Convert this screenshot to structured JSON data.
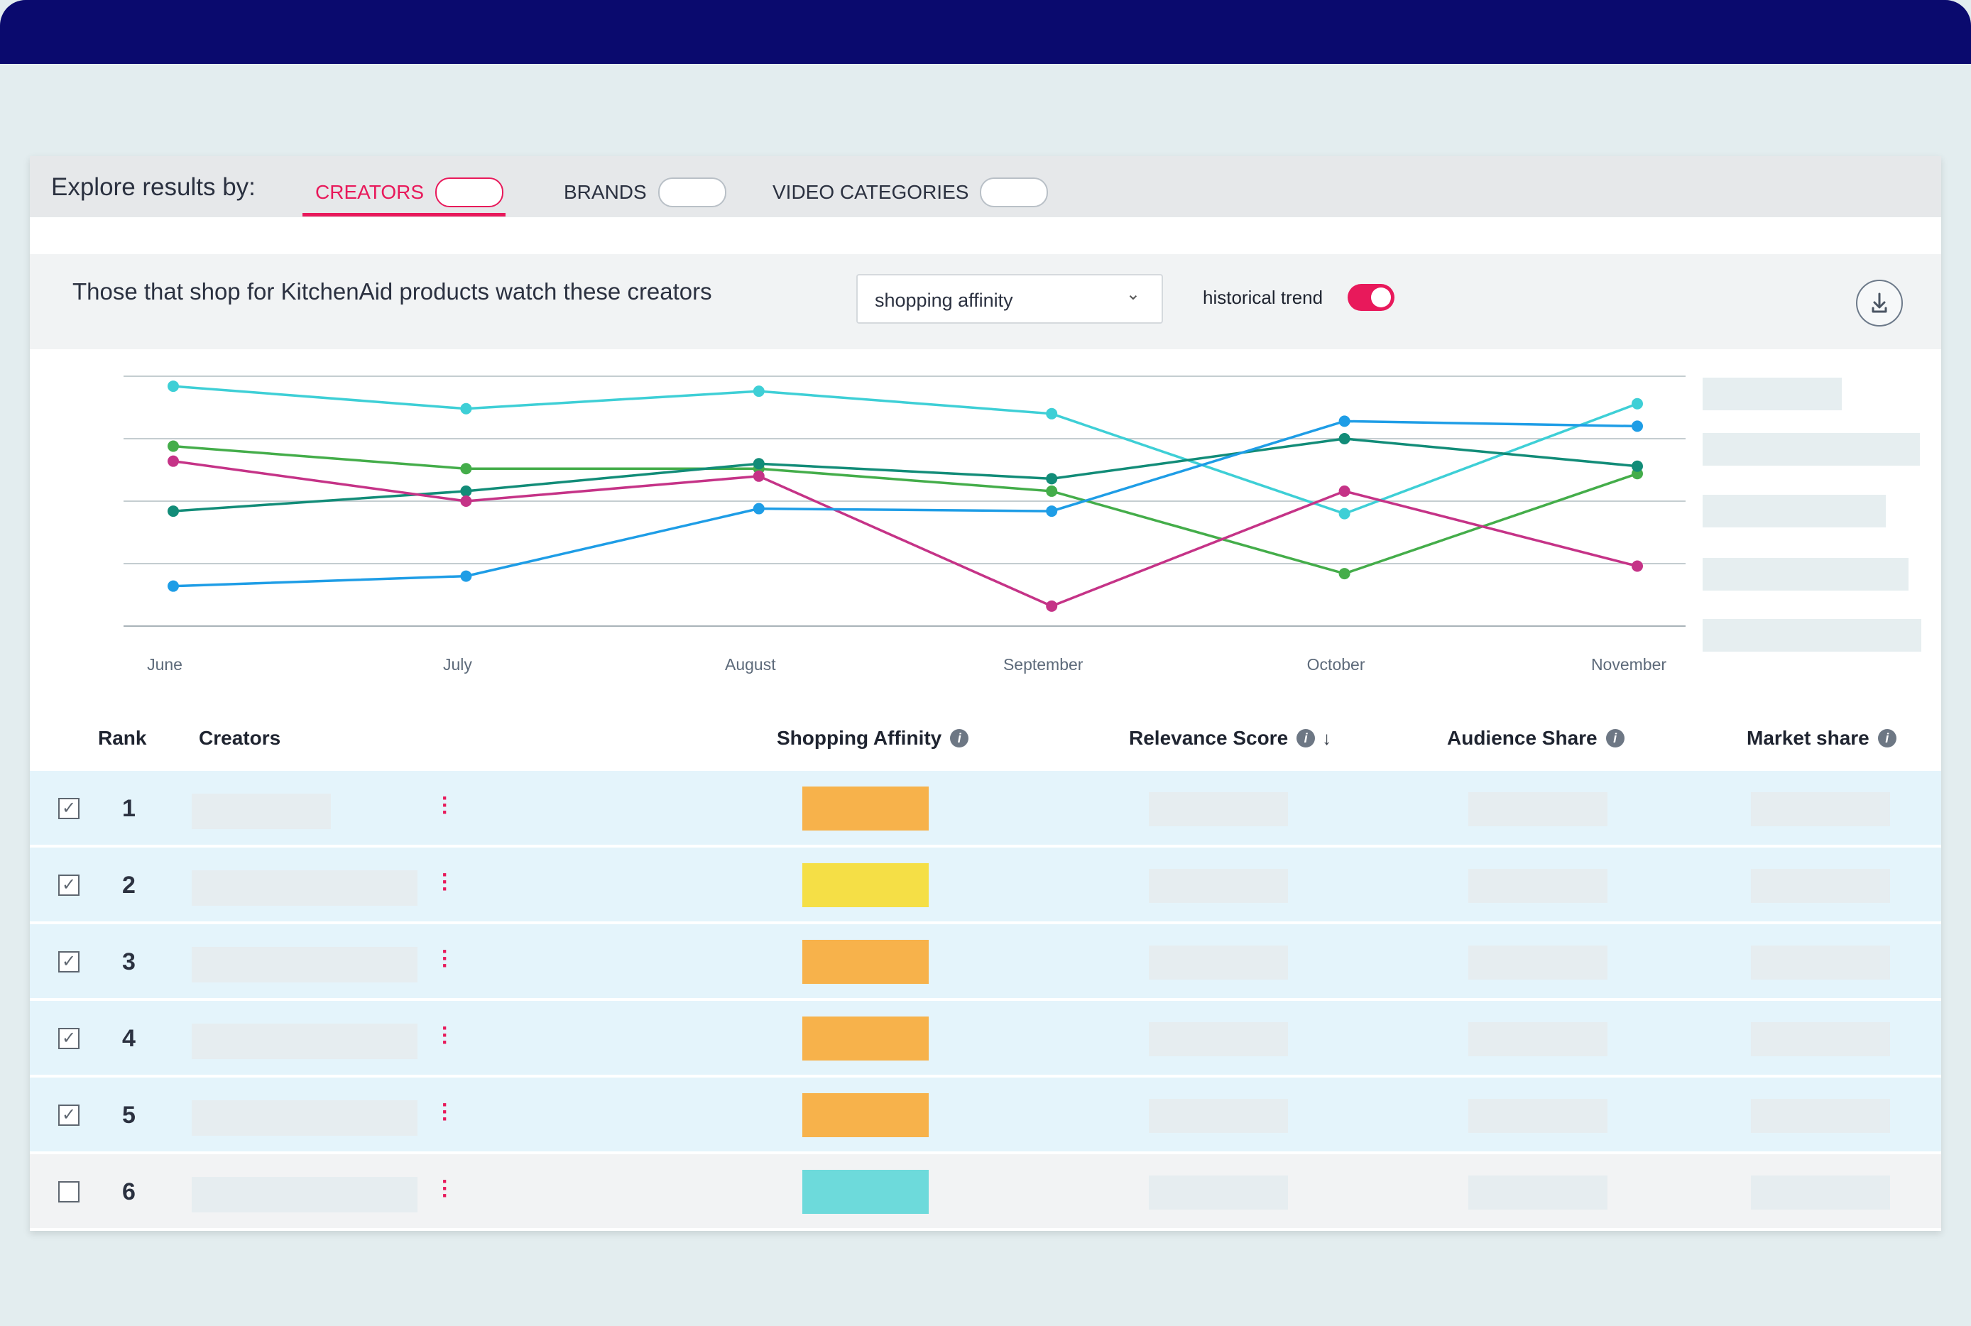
{
  "explore": {
    "label": "Explore results by:",
    "tabs": [
      {
        "label": "CREATORS",
        "active": true
      },
      {
        "label": "BRANDS",
        "active": false
      },
      {
        "label": "VIDEO CATEGORIES",
        "active": false
      }
    ]
  },
  "filter": {
    "title": "Those that shop for KitchenAid products watch these creators",
    "metric_select": "shopping affinity",
    "historical_trend_label": "historical trend",
    "historical_trend_on": true
  },
  "chart_data": {
    "type": "line",
    "categories": [
      "June",
      "July",
      "August",
      "September",
      "October",
      "November"
    ],
    "y_axis_labels_shown": false,
    "grid": true,
    "ylim": [
      0,
      10
    ],
    "series": [
      {
        "color": "#3ecfd6",
        "values": [
          9.6,
          8.7,
          9.4,
          8.5,
          4.5,
          8.9
        ]
      },
      {
        "color": "#44ad4a",
        "values": [
          7.2,
          6.3,
          6.3,
          5.4,
          2.1,
          6.1
        ]
      },
      {
        "color": "#128c78",
        "values": [
          4.6,
          5.4,
          6.5,
          5.9,
          7.5,
          6.4
        ]
      },
      {
        "color": "#c53387",
        "values": [
          6.6,
          5.0,
          6.0,
          0.8,
          5.4,
          2.4
        ]
      },
      {
        "color": "#1e9de6",
        "values": [
          1.6,
          2.0,
          4.7,
          4.6,
          8.2,
          8.0
        ]
      }
    ]
  },
  "table": {
    "columns": {
      "rank": "Rank",
      "creators": "Creators",
      "shopping_affinity": "Shopping Affinity",
      "relevance_score": "Relevance Score",
      "audience_share": "Audience Share",
      "market_share": "Market share"
    },
    "rows": [
      {
        "rank": "1",
        "checked": true,
        "affinity_color": "#f7b24b"
      },
      {
        "rank": "2",
        "checked": true,
        "affinity_color": "#f5df46"
      },
      {
        "rank": "3",
        "checked": true,
        "affinity_color": "#f7b24b"
      },
      {
        "rank": "4",
        "checked": true,
        "affinity_color": "#f7b24b"
      },
      {
        "rank": "5",
        "checked": true,
        "affinity_color": "#f7b24b"
      },
      {
        "rank": "6",
        "checked": false,
        "affinity_color": "#6ddadb"
      }
    ]
  },
  "colors": {
    "accent": "#e8195b",
    "header": "#0a0a6e"
  }
}
